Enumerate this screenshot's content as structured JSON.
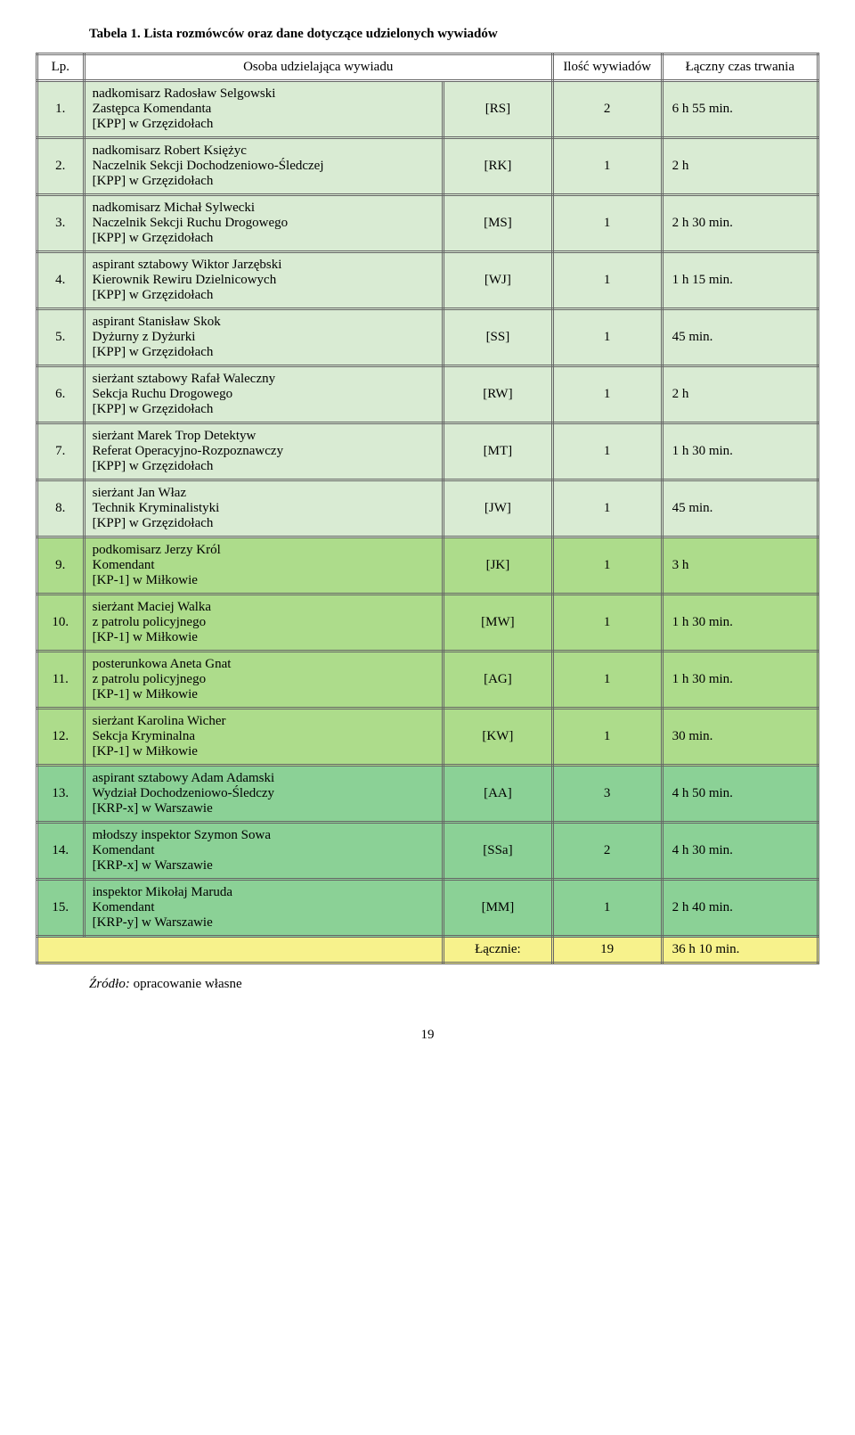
{
  "caption": "Tabela 1. Lista rozmówców oraz dane dotyczące udzielonych wywiadów",
  "headers": {
    "lp": "Lp.",
    "osoba": "Osoba udzielająca wywiadu",
    "ilosc": "Ilość wywiadów",
    "czas": "Łączny czas trwania"
  },
  "colors": {
    "group1": "#d9ebd3",
    "group2": "#addc8b",
    "group3": "#8bd196",
    "totalrow": "#f7f28c"
  },
  "rows": [
    {
      "lp": "1.",
      "osoba": "nadkomisarz Radosław Selgowski\nZastępca Komendanta\n[KPP] w Grzęzidołach",
      "code": "[RS]",
      "cnt": "2",
      "czas": "6 h 55 min.",
      "group": 1
    },
    {
      "lp": "2.",
      "osoba": "nadkomisarz Robert Księżyc\nNaczelnik Sekcji Dochodzeniowo-Śledczej\n[KPP] w Grzęzidołach",
      "code": "[RK]",
      "cnt": "1",
      "czas": "2 h",
      "group": 1
    },
    {
      "lp": "3.",
      "osoba": "nadkomisarz Michał Sylwecki\nNaczelnik Sekcji Ruchu Drogowego\n[KPP] w Grzęzidołach",
      "code": "[MS]",
      "cnt": "1",
      "czas": "2 h 30 min.",
      "group": 1
    },
    {
      "lp": "4.",
      "osoba": "aspirant sztabowy Wiktor Jarzębski\nKierownik Rewiru Dzielnicowych\n[KPP] w Grzęzidołach",
      "code": "[WJ]",
      "cnt": "1",
      "czas": "1 h 15 min.",
      "group": 1
    },
    {
      "lp": "5.",
      "osoba": "aspirant Stanisław Skok\nDyżurny z Dyżurki\n[KPP] w Grzęzidołach",
      "code": "[SS]",
      "cnt": "1",
      "czas": "45 min.",
      "group": 1
    },
    {
      "lp": "6.",
      "osoba": "sierżant sztabowy Rafał Waleczny\nSekcja Ruchu Drogowego\n[KPP] w Grzęzidołach",
      "code": "[RW]",
      "cnt": "1",
      "czas": "2 h",
      "group": 1
    },
    {
      "lp": "7.",
      "osoba": "sierżant Marek Trop Detektyw\nReferat Operacyjno-Rozpoznawczy\n[KPP] w Grzęzidołach",
      "code": "[MT]",
      "cnt": "1",
      "czas": "1 h 30 min.",
      "group": 1
    },
    {
      "lp": "8.",
      "osoba": "sierżant Jan Właz\nTechnik Kryminalistyki\n[KPP] w Grzęzidołach",
      "code": "[JW]",
      "cnt": "1",
      "czas": "45 min.",
      "group": 1
    },
    {
      "lp": "9.",
      "osoba": "podkomisarz Jerzy Król\nKomendant\n[KP-1] w Miłkowie",
      "code": "[JK]",
      "cnt": "1",
      "czas": "3 h",
      "group": 2
    },
    {
      "lp": "10.",
      "osoba": "sierżant Maciej Walka\nz patrolu policyjnego\n[KP-1] w Miłkowie",
      "code": "[MW]",
      "cnt": "1",
      "czas": "1 h 30 min.",
      "group": 2
    },
    {
      "lp": "11.",
      "osoba": "posterunkowa Aneta Gnat\nz patrolu policyjnego\n[KP-1] w Miłkowie",
      "code": "[AG]",
      "cnt": "1",
      "czas": "1 h 30 min.",
      "group": 2
    },
    {
      "lp": "12.",
      "osoba": "sierżant Karolina Wicher\nSekcja Kryminalna\n[KP-1] w Miłkowie",
      "code": "[KW]",
      "cnt": "1",
      "czas": "30 min.",
      "group": 2
    },
    {
      "lp": "13.",
      "osoba": "aspirant sztabowy Adam Adamski\nWydział Dochodzeniowo-Śledczy\n[KRP-x] w Warszawie",
      "code": "[AA]",
      "cnt": "3",
      "czas": "4 h 50 min.",
      "group": 3
    },
    {
      "lp": "14.",
      "osoba": "młodszy inspektor Szymon Sowa\nKomendant\n[KRP-x] w Warszawie",
      "code": "[SSa]",
      "cnt": "2",
      "czas": "4 h 30 min.",
      "group": 3
    },
    {
      "lp": "15.",
      "osoba": "inspektor Mikołaj Maruda\nKomendant\n[KRP-y] w Warszawie",
      "code": "[MM]",
      "cnt": "1",
      "czas": "2 h 40 min.",
      "group": 3
    }
  ],
  "total": {
    "label": "Łącznie:",
    "cnt": "19",
    "czas": "36 h 10 min."
  },
  "source_label": "Źródło:",
  "source_text": " opracowanie własne",
  "page_number": "19"
}
